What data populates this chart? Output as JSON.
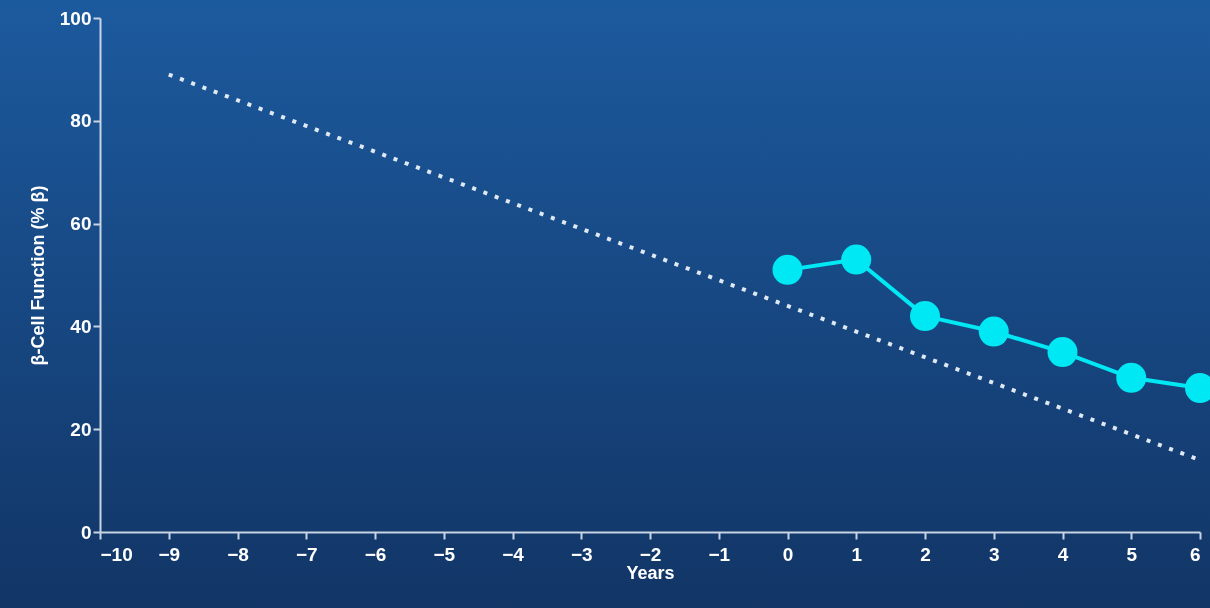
{
  "chart_data": {
    "type": "line",
    "xlabel": "Years",
    "ylabel": "β-Cell Function (% β)",
    "xlim": [
      -10,
      6
    ],
    "xticks": [
      -10,
      -9,
      -8,
      -7,
      -6,
      -5,
      -4,
      -3,
      -2,
      -1,
      0,
      1,
      2,
      3,
      4,
      5,
      6
    ],
    "ylim": [
      0,
      100
    ],
    "yticks": [
      0,
      20,
      40,
      60,
      80,
      100
    ],
    "grid": false,
    "series": [
      {
        "color": "#dfe9f3",
        "line_style": "dotted",
        "marker": "none",
        "x": [
          -9,
          6
        ],
        "values": [
          89,
          14
        ]
      },
      {
        "color": "#00e8f4",
        "line_style": "solid",
        "marker": "circle",
        "x": [
          0,
          1,
          2,
          3,
          4,
          5,
          6
        ],
        "values": [
          51,
          53,
          42,
          39,
          35,
          30,
          28
        ]
      }
    ]
  }
}
